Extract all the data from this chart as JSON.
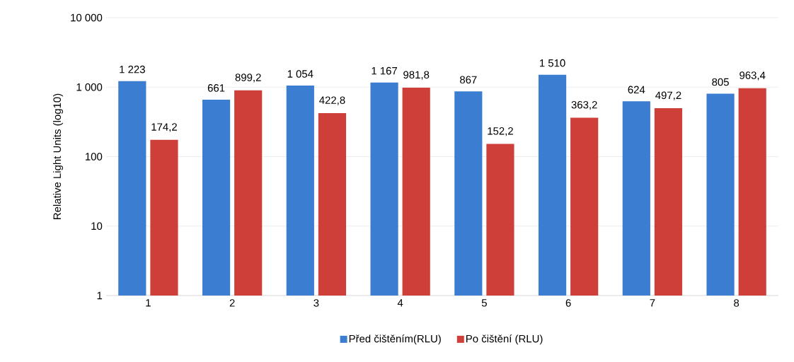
{
  "chart_data": {
    "type": "bar",
    "ylabel": "Relative Light Units  (log10)",
    "categories": [
      "1",
      "2",
      "3",
      "4",
      "5",
      "6",
      "7",
      "8"
    ],
    "series": [
      {
        "name": "Před čištěním(RLU)",
        "color": "#3b7dd0",
        "values": [
          1223,
          661,
          1054,
          1167,
          867,
          1510,
          624,
          805
        ],
        "value_labels": [
          "1 223",
          "661",
          "1 054",
          "1 167",
          "867",
          "1 510",
          "624",
          "805"
        ]
      },
      {
        "name": "Po čištění (RLU)",
        "color": "#cf3f3a",
        "values": [
          174.2,
          899.2,
          422.8,
          981.8,
          152.2,
          363.2,
          497.2,
          963.4
        ],
        "value_labels": [
          "174,2",
          "899,2",
          "422,8",
          "981,8",
          "152,2",
          "363,2",
          "497,2",
          "963,4"
        ]
      }
    ],
    "log": "y",
    "ylim": [
      1,
      10000
    ],
    "yticks": [
      1,
      10,
      100,
      {
        "value": 1000,
        "label": "1 000"
      },
      {
        "value": 10000,
        "label": "10 000"
      }
    ],
    "grid": "y",
    "legend": "bottom"
  }
}
